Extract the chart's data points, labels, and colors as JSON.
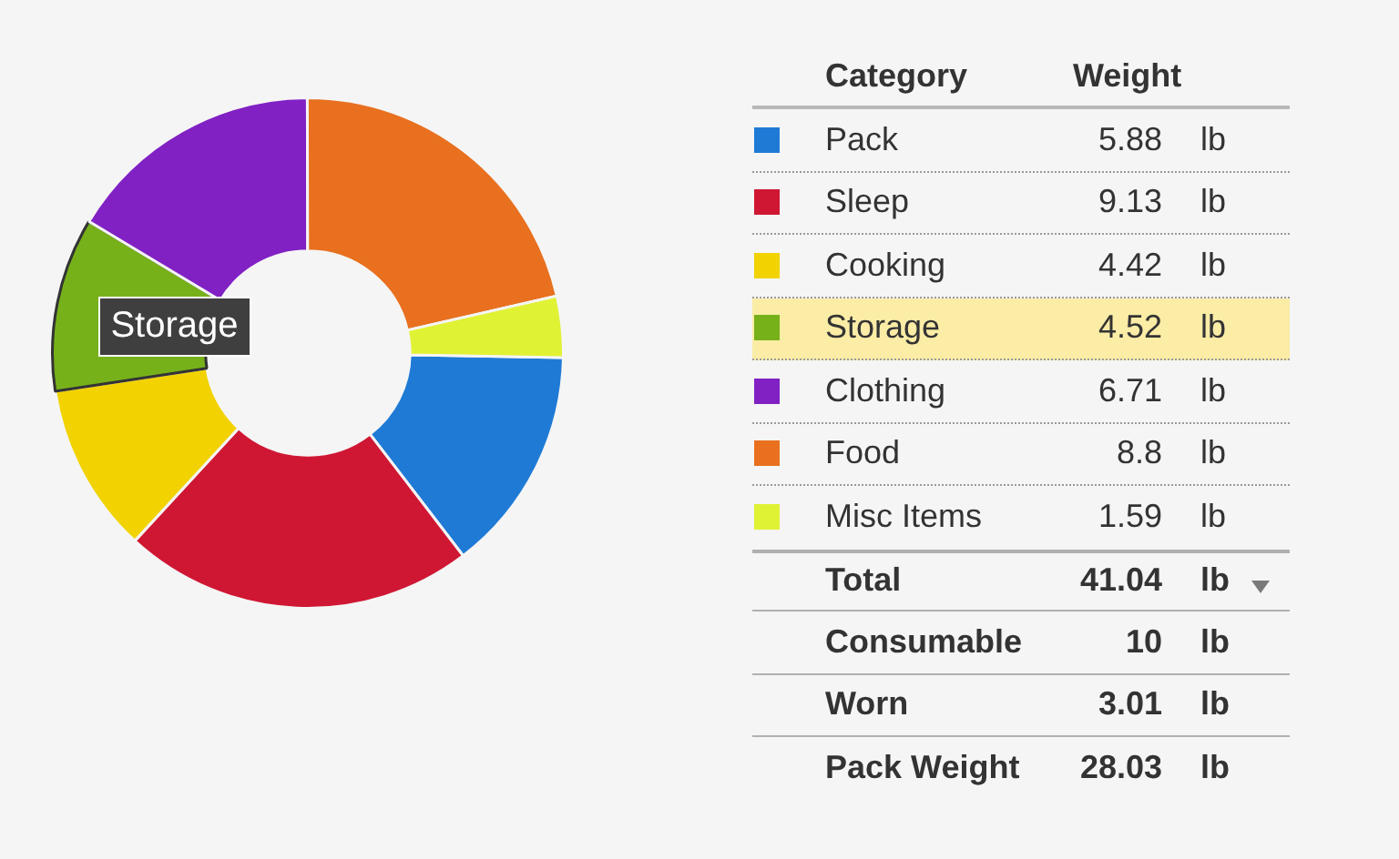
{
  "chart_data": {
    "type": "donut",
    "categories": [
      "Pack",
      "Sleep",
      "Cooking",
      "Storage",
      "Clothing",
      "Food",
      "Misc Items"
    ],
    "values": [
      5.88,
      9.13,
      4.42,
      4.52,
      6.71,
      8.8,
      1.59
    ],
    "colors": [
      "#1f7ad6",
      "#cf1734",
      "#f2d200",
      "#77b11a",
      "#8121c4",
      "#e8701f",
      "#e0f234"
    ],
    "legend": "right",
    "legend_title": "Category",
    "data_labels": true,
    "annotations": [
      "Weight",
      "lb",
      "Total",
      "41.04",
      "Consumable",
      "10",
      "Worn",
      "3.01",
      "Pack Weight",
      "28.03",
      {
        "text": "Storage",
        "x": "Storage"
      }
    ]
  }
}
